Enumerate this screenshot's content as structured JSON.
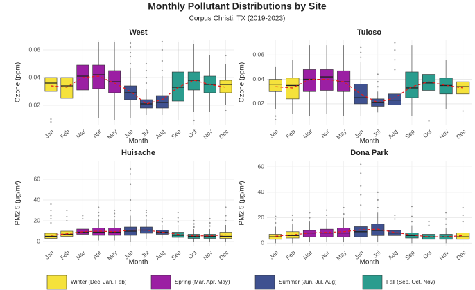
{
  "title": "Monthly Pollutant Distributions by Site",
  "subtitle": "Corpus Christi, TX (2019-2023)",
  "legend": [
    {
      "name": "Winter (Dec, Jan, Feb)",
      "color": "#f5e23c"
    },
    {
      "name": "Spring (Mar, Apr, May)",
      "color": "#9b1fa3"
    },
    {
      "name": "Summer (Jun, Jul, Aug)",
      "color": "#3f5190"
    },
    {
      "name": "Fall (Sep, Oct, Nov)",
      "color": "#2a9c8e"
    }
  ],
  "chart_data": [
    {
      "type": "box",
      "title": "West",
      "x_label": "Month",
      "y_label": "Ozone (ppm)",
      "categories": [
        "Jan",
        "Feb",
        "Mar",
        "Apr",
        "May",
        "Jun",
        "Jul",
        "Aug",
        "Sep",
        "Oct",
        "Nov",
        "Dec"
      ],
      "box_colors": [
        "#f5e23c",
        "#f5e23c",
        "#9b1fa3",
        "#9b1fa3",
        "#9b1fa3",
        "#3f5190",
        "#3f5190",
        "#3f5190",
        "#2a9c8e",
        "#2a9c8e",
        "#2a9c8e",
        "#f5e23c"
      ],
      "min": [
        0.017,
        0.013,
        0.01,
        0.011,
        0.009,
        0.011,
        0.013,
        0.013,
        0.009,
        0.015,
        0.015,
        0.02
      ],
      "q1": [
        0.03,
        0.025,
        0.031,
        0.032,
        0.029,
        0.024,
        0.018,
        0.018,
        0.023,
        0.031,
        0.029,
        0.029
      ],
      "median": [
        0.036,
        0.034,
        0.041,
        0.042,
        0.037,
        0.029,
        0.021,
        0.022,
        0.033,
        0.038,
        0.035,
        0.035
      ],
      "q3": [
        0.04,
        0.04,
        0.049,
        0.049,
        0.045,
        0.034,
        0.024,
        0.027,
        0.044,
        0.044,
        0.041,
        0.038
      ],
      "max": [
        0.052,
        0.056,
        0.066,
        0.066,
        0.066,
        0.047,
        0.032,
        0.041,
        0.066,
        0.064,
        0.056,
        0.05
      ],
      "mean": [
        0.034,
        0.033,
        0.04,
        0.041,
        0.036,
        0.03,
        0.021,
        0.024,
        0.033,
        0.038,
        0.035,
        0.033
      ],
      "outliers": [
        [
          0.008,
          0.01
        ],
        [],
        [],
        [],
        [],
        [
          0.05,
          0.055,
          0.058,
          0.062,
          0.065
        ],
        [
          0.036,
          0.04,
          0.045,
          0.05
        ],
        [
          0.045,
          0.052,
          0.06,
          0.066
        ],
        [],
        [
          0.009
        ],
        [],
        [
          0.016,
          0.056
        ]
      ],
      "ylim": [
        0.006,
        0.067
      ],
      "yticks": [
        0.02,
        0.04,
        0.06
      ]
    },
    {
      "type": "box",
      "title": "Tuloso",
      "x_label": "Month",
      "y_label": "Ozone (ppm)",
      "categories": [
        "Jan",
        "Feb",
        "Mar",
        "Apr",
        "May",
        "Jun",
        "Jul",
        "Aug",
        "Sep",
        "Oct",
        "Nov",
        "Dec"
      ],
      "box_colors": [
        "#f5e23c",
        "#f5e23c",
        "#9b1fa3",
        "#9b1fa3",
        "#9b1fa3",
        "#3f5190",
        "#3f5190",
        "#3f5190",
        "#2a9c8e",
        "#2a9c8e",
        "#2a9c8e",
        "#f5e23c"
      ],
      "min": [
        0.016,
        0.012,
        0.01,
        0.012,
        0.01,
        0.01,
        0.013,
        0.012,
        0.01,
        0.014,
        0.016,
        0.017
      ],
      "q1": [
        0.03,
        0.024,
        0.03,
        0.031,
        0.03,
        0.02,
        0.018,
        0.019,
        0.025,
        0.031,
        0.028,
        0.028
      ],
      "median": [
        0.036,
        0.035,
        0.04,
        0.042,
        0.038,
        0.025,
        0.021,
        0.023,
        0.033,
        0.037,
        0.035,
        0.034
      ],
      "q3": [
        0.04,
        0.041,
        0.048,
        0.048,
        0.047,
        0.036,
        0.024,
        0.028,
        0.046,
        0.044,
        0.041,
        0.038
      ],
      "max": [
        0.05,
        0.056,
        0.068,
        0.068,
        0.068,
        0.054,
        0.03,
        0.044,
        0.068,
        0.066,
        0.056,
        0.052
      ],
      "mean": [
        0.034,
        0.033,
        0.04,
        0.04,
        0.038,
        0.028,
        0.021,
        0.025,
        0.034,
        0.038,
        0.035,
        0.033
      ],
      "outliers": [
        [
          0.007,
          0.01
        ],
        [],
        [],
        [],
        [],
        [
          0.058,
          0.062,
          0.066
        ],
        [
          0.034,
          0.038,
          0.044
        ],
        [
          0.048,
          0.056,
          0.064,
          0.07
        ],
        [],
        [
          0.006
        ],
        [],
        [
          0.014
        ]
      ],
      "ylim": [
        0.003,
        0.072
      ],
      "yticks": [
        0.02,
        0.04,
        0.06
      ]
    },
    {
      "type": "box",
      "title": "Huisache",
      "x_label": "Month",
      "y_label": "PM2.5 (μg/m³)",
      "categories": [
        "Jan",
        "Feb",
        "Mar",
        "Apr",
        "May",
        "Jun",
        "Jul",
        "Aug",
        "Sep",
        "Oct",
        "Nov",
        "Dec"
      ],
      "box_colors": [
        "#f5e23c",
        "#f5e23c",
        "#9b1fa3",
        "#9b1fa3",
        "#9b1fa3",
        "#3f5190",
        "#3f5190",
        "#3f5190",
        "#2a9c8e",
        "#2a9c8e",
        "#2a9c8e",
        "#f5e23c"
      ],
      "min": [
        0,
        0,
        2,
        1,
        1,
        0,
        2,
        3,
        0,
        0,
        0,
        0
      ],
      "q1": [
        3,
        5,
        7,
        6,
        6,
        6,
        8,
        7,
        4,
        3,
        3,
        3
      ],
      "median": [
        5,
        7,
        9,
        9,
        9,
        10,
        11,
        9,
        6,
        5,
        5,
        5
      ],
      "q3": [
        8,
        10,
        12,
        13,
        13,
        14,
        14,
        11,
        9,
        7,
        7,
        9
      ],
      "max": [
        15,
        17,
        19,
        22,
        21,
        25,
        22,
        16,
        16,
        12,
        12,
        16
      ],
      "mean": [
        6,
        7.5,
        9.5,
        10,
        9.5,
        11,
        11,
        9,
        7,
        5.5,
        5.5,
        6.5
      ],
      "outliers": [
        [
          18,
          22,
          25,
          30,
          36
        ],
        [
          20,
          24,
          30
        ],
        [
          22,
          25
        ],
        [
          25,
          28,
          33
        ],
        [
          24,
          27,
          30
        ],
        [
          30,
          40,
          55,
          65,
          70
        ],
        [
          25,
          28,
          30
        ],
        [
          19,
          22
        ],
        [
          19,
          23,
          28
        ],
        [
          14,
          17,
          20
        ],
        [
          15,
          18,
          22
        ],
        [
          20,
          25,
          33
        ]
      ],
      "ylim": [
        -4,
        78
      ],
      "yticks": [
        0,
        20,
        40,
        60
      ]
    },
    {
      "type": "box",
      "title": "Dona Park",
      "x_label": "Month",
      "y_label": "PM2.5 (μg/m³)",
      "categories": [
        "Jan",
        "Feb",
        "Mar",
        "Apr",
        "May",
        "Jun",
        "Jul",
        "Aug",
        "Sep",
        "Oct",
        "Nov",
        "Dec"
      ],
      "box_colors": [
        "#f5e23c",
        "#f5e23c",
        "#9b1fa3",
        "#9b1fa3",
        "#9b1fa3",
        "#3f5190",
        "#3f5190",
        "#3f5190",
        "#2a9c8e",
        "#2a9c8e",
        "#2a9c8e",
        "#f5e23c"
      ],
      "min": [
        0,
        0,
        1,
        1,
        1,
        0,
        1,
        2,
        0,
        0,
        0,
        0
      ],
      "q1": [
        3,
        4,
        5,
        5,
        5,
        5,
        6,
        6,
        4,
        3,
        3,
        3
      ],
      "median": [
        5,
        6,
        8,
        8,
        8,
        9,
        10,
        8,
        6,
        5,
        5,
        5
      ],
      "q3": [
        7,
        9,
        10,
        11,
        12,
        13,
        15,
        10,
        8,
        7,
        7,
        8
      ],
      "max": [
        13,
        15,
        17,
        19,
        20,
        25,
        24,
        16,
        14,
        12,
        12,
        14
      ],
      "mean": [
        5.5,
        6.5,
        8,
        8.5,
        9,
        10.5,
        11,
        8.5,
        6.5,
        5,
        5,
        6
      ],
      "outliers": [
        [
          16,
          19,
          21
        ],
        [
          18,
          22
        ],
        [
          20,
          24
        ],
        [
          22,
          26
        ],
        [
          23,
          28
        ],
        [
          30,
          38,
          45,
          55,
          62
        ],
        [
          28,
          34,
          40
        ],
        [
          19,
          22
        ],
        [
          17,
          21,
          29
        ],
        [
          14,
          17
        ],
        [
          15,
          19,
          24
        ],
        [
          17,
          22,
          28
        ]
      ],
      "ylim": [
        -2,
        65
      ],
      "yticks": [
        0,
        20,
        40,
        60
      ]
    }
  ]
}
